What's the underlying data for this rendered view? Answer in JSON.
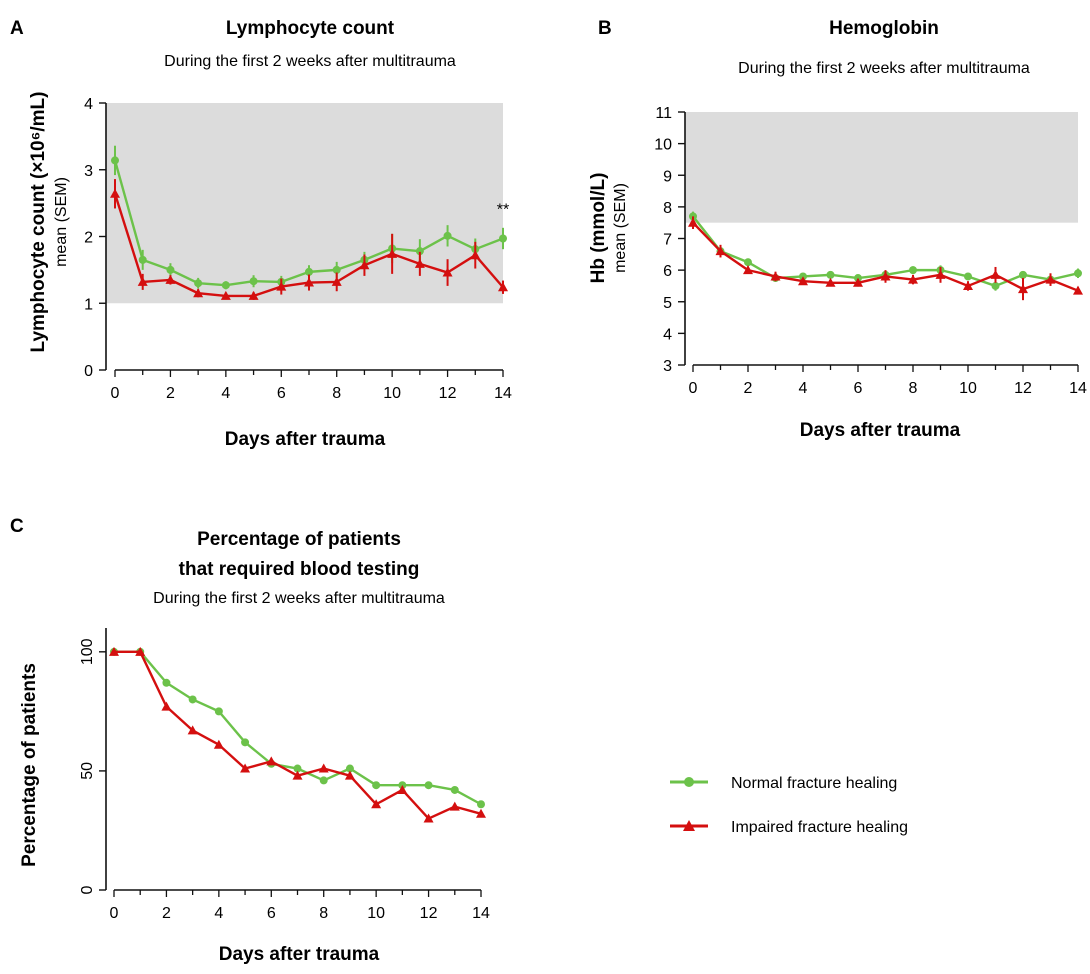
{
  "colors": {
    "normal": "#6cc24a",
    "impaired": "#d40f0f",
    "band": "#dcdcdc",
    "axis": "#111111"
  },
  "legend": {
    "normal": "Normal fracture healing",
    "impaired": "Impaired fracture healing"
  },
  "chart_data": [
    {
      "panel": "A",
      "type": "line",
      "title": "Lymphocyte count",
      "subtitle": "During the first 2 weeks after multitrauma",
      "ylabel_main": "Lymphocyte  count (×10⁶/mL)",
      "ylabel_sub": "mean (SEM)",
      "xlabel": "Days after trauma",
      "xlim": [
        0,
        14
      ],
      "ylim": [
        0,
        4
      ],
      "xticks": [
        "0",
        "2",
        "4",
        "6",
        "8",
        "10",
        "12",
        "14"
      ],
      "yticks": [
        "0",
        "1",
        "2",
        "3",
        "4"
      ],
      "reference_band": [
        1,
        4
      ],
      "annotation": {
        "text": "**",
        "x": 14,
        "y": 2.33
      },
      "x": [
        0,
        1,
        2,
        3,
        4,
        5,
        6,
        7,
        8,
        9,
        10,
        11,
        12,
        13,
        14
      ],
      "series": [
        {
          "name": "Normal fracture healing",
          "marker": "circle",
          "values": [
            3.14,
            1.65,
            1.5,
            1.3,
            1.27,
            1.33,
            1.32,
            1.47,
            1.5,
            1.65,
            1.82,
            1.78,
            2.01,
            1.81,
            1.97
          ],
          "sem": [
            0.22,
            0.15,
            0.1,
            0.08,
            0.06,
            0.09,
            0.09,
            0.1,
            0.12,
            0.12,
            0.22,
            0.18,
            0.16,
            0.16,
            0.16
          ]
        },
        {
          "name": "Impaired fracture healing",
          "marker": "triangle",
          "values": [
            2.64,
            1.32,
            1.35,
            1.15,
            1.11,
            1.11,
            1.25,
            1.31,
            1.32,
            1.57,
            1.74,
            1.59,
            1.46,
            1.72,
            1.24
          ],
          "sem": [
            0.22,
            0.12,
            0.07,
            0.06,
            0.05,
            0.06,
            0.12,
            0.12,
            0.14,
            0.16,
            0.3,
            0.18,
            0.2,
            0.2,
            0.1
          ]
        }
      ]
    },
    {
      "panel": "B",
      "type": "line",
      "title": "Hemoglobin",
      "subtitle": "During the first 2 weeks after multitrauma",
      "ylabel_main": "Hb (mmol/L)",
      "ylabel_sub": "mean (SEM)",
      "xlabel": "Days after trauma",
      "xlim": [
        0,
        14
      ],
      "ylim": [
        3,
        11
      ],
      "xticks": [
        "0",
        "2",
        "4",
        "6",
        "8",
        "10",
        "12",
        "14"
      ],
      "yticks": [
        "3",
        "4",
        "5",
        "6",
        "7",
        "8",
        "9",
        "10",
        "11"
      ],
      "reference_band": [
        7.5,
        11
      ],
      "x": [
        0,
        1,
        2,
        3,
        4,
        5,
        6,
        7,
        8,
        9,
        10,
        11,
        12,
        13,
        14
      ],
      "series": [
        {
          "name": "Normal fracture healing",
          "marker": "circle",
          "values": [
            7.7,
            6.6,
            6.25,
            5.75,
            5.8,
            5.85,
            5.75,
            5.85,
            6.0,
            6.0,
            5.8,
            5.5,
            5.85,
            5.7,
            5.9
          ],
          "sem": [
            0.15,
            0.12,
            0.12,
            0.1,
            0.08,
            0.1,
            0.1,
            0.1,
            0.12,
            0.15,
            0.1,
            0.15,
            0.12,
            0.15,
            0.15
          ]
        },
        {
          "name": "Impaired fracture healing",
          "marker": "triangle",
          "values": [
            7.5,
            6.6,
            6.0,
            5.8,
            5.65,
            5.6,
            5.6,
            5.8,
            5.7,
            5.85,
            5.5,
            5.85,
            5.4,
            5.7,
            5.35
          ],
          "sem": [
            0.2,
            0.2,
            0.12,
            0.15,
            0.1,
            0.1,
            0.12,
            0.2,
            0.15,
            0.25,
            0.15,
            0.25,
            0.35,
            0.2,
            0.12
          ]
        }
      ]
    },
    {
      "panel": "C",
      "type": "line",
      "title_line1": "Percentage of patients",
      "title_line2": "that required blood testing",
      "subtitle": "During the first 2 weeks after multitrauma",
      "ylabel_main": "Percentage of patients",
      "xlabel": "Days after trauma",
      "xlim": [
        0,
        14
      ],
      "ylim": [
        0,
        110
      ],
      "xticks": [
        "0",
        "2",
        "4",
        "6",
        "8",
        "10",
        "12",
        "14"
      ],
      "yticks": [
        "0",
        "50",
        "100"
      ],
      "x": [
        0,
        1,
        2,
        3,
        4,
        5,
        6,
        7,
        8,
        9,
        10,
        11,
        12,
        13,
        14
      ],
      "series": [
        {
          "name": "Normal fracture healing",
          "marker": "circle",
          "values": [
            100,
            100,
            87,
            80,
            75,
            62,
            53,
            51,
            46,
            51,
            44,
            44,
            44,
            42,
            36
          ]
        },
        {
          "name": "Impaired fracture healing",
          "marker": "triangle",
          "values": [
            100,
            100,
            77,
            67,
            61,
            51,
            54,
            48,
            51,
            48,
            36,
            42,
            30,
            35,
            32
          ]
        }
      ]
    }
  ]
}
